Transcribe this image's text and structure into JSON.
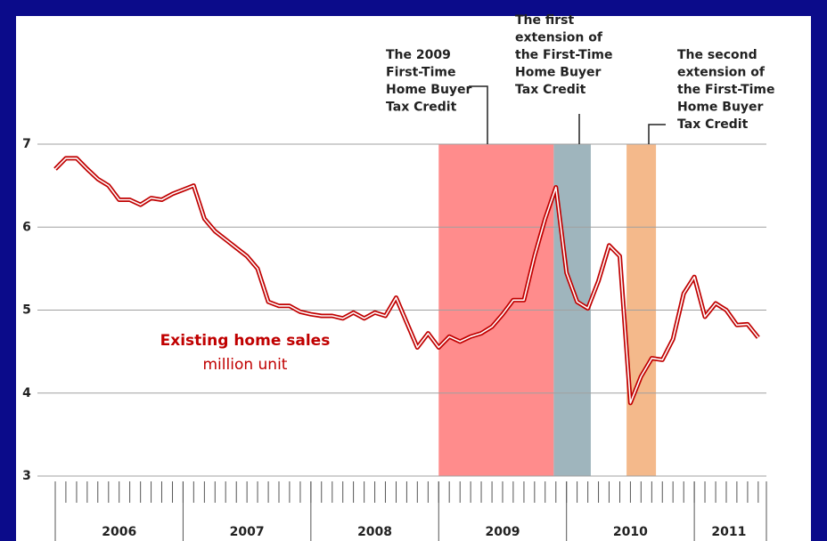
{
  "chart_data": {
    "type": "line",
    "x": [
      2006,
      2006.083,
      2006.167,
      2006.25,
      2006.333,
      2006.417,
      2006.5,
      2006.583,
      2006.667,
      2006.75,
      2006.833,
      2006.917,
      2007,
      2007.083,
      2007.167,
      2007.25,
      2007.333,
      2007.417,
      2007.5,
      2007.583,
      2007.667,
      2007.75,
      2007.833,
      2007.917,
      2008,
      2008.083,
      2008.167,
      2008.25,
      2008.333,
      2008.417,
      2008.5,
      2008.583,
      2008.667,
      2008.75,
      2008.833,
      2008.917,
      2009,
      2009.083,
      2009.167,
      2009.25,
      2009.333,
      2009.417,
      2009.5,
      2009.583,
      2009.667,
      2009.75,
      2009.833,
      2009.917,
      2010,
      2010.083,
      2010.167,
      2010.25,
      2010.333,
      2010.417,
      2010.5,
      2010.583,
      2010.667,
      2010.75,
      2010.833,
      2010.917,
      2011,
      2011.083,
      2011.167,
      2011.25,
      2011.333,
      2011.417,
      2011.5
    ],
    "series": [
      {
        "name": "Existing home sales",
        "color": "#c00000",
        "values": [
          6.7,
          6.83,
          6.83,
          6.7,
          6.58,
          6.5,
          6.33,
          6.33,
          6.27,
          6.35,
          6.33,
          6.4,
          6.45,
          6.5,
          6.1,
          5.95,
          5.85,
          5.75,
          5.65,
          5.5,
          5.1,
          5.05,
          5.05,
          4.98,
          4.95,
          4.93,
          4.93,
          4.9,
          4.97,
          4.9,
          4.97,
          4.93,
          5.15,
          4.85,
          4.55,
          4.72,
          4.55,
          4.68,
          4.62,
          4.68,
          4.72,
          4.8,
          4.95,
          5.12,
          5.12,
          5.65,
          6.1,
          6.48,
          5.45,
          5.1,
          5.02,
          5.35,
          5.78,
          5.65,
          3.88,
          4.2,
          4.42,
          4.4,
          4.65,
          5.2,
          5.4,
          4.92,
          5.08,
          5.0,
          4.82,
          4.83,
          4.67
        ]
      }
    ],
    "y_label": "million unit",
    "xlim": [
      2006,
      2011.55
    ],
    "xticks": [
      {
        "value": 2006.5,
        "label": "2006"
      },
      {
        "value": 2007.5,
        "label": "2007"
      },
      {
        "value": 2008.5,
        "label": "2008"
      },
      {
        "value": 2009.5,
        "label": "2009"
      },
      {
        "value": 2010.5,
        "label": "2010"
      },
      {
        "value": 2011.27,
        "label": "2011"
      }
    ],
    "ylim": [
      3,
      7
    ],
    "yticks": [
      3,
      4,
      5,
      6,
      7
    ],
    "grid": true,
    "periods": [
      {
        "start": 2009,
        "end": 2009.9,
        "color": "#ff8c8c"
      },
      {
        "start": 2009.9,
        "end": 2010.19,
        "color": "#9fb5bd"
      },
      {
        "start": 2010.47,
        "end": 2010.7,
        "color": "#f4b98b"
      }
    ],
    "annotations": [
      {
        "lines": [
          "The 2009",
          "First-Time",
          "Home Buyer",
          "Tax Credit"
        ]
      },
      {
        "lines": [
          "The first",
          "extension of",
          "the First-Time",
          "Home Buyer",
          "Tax Credit"
        ]
      },
      {
        "lines": [
          "The second",
          "extension of",
          "the First-Time",
          "Home Buyer",
          "Tax Credit"
        ]
      }
    ]
  }
}
